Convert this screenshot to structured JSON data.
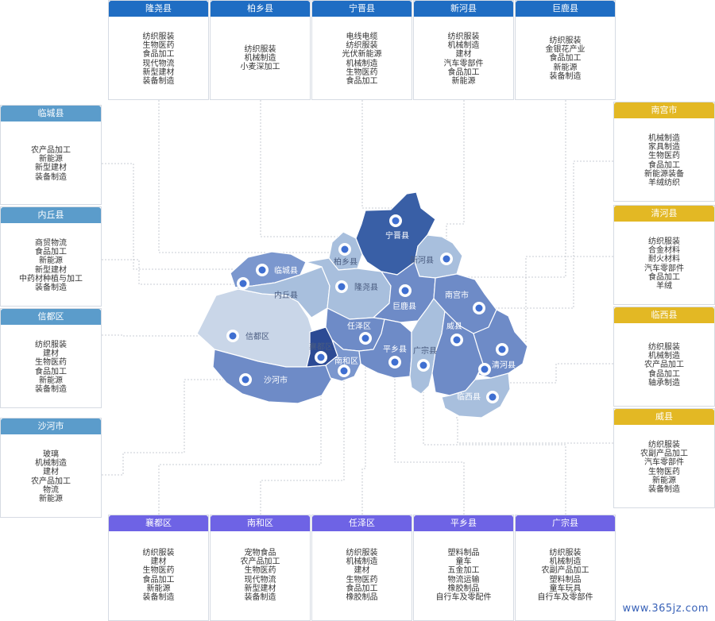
{
  "top_cards": [
    {
      "name": "隆尧县",
      "items": [
        "纺织服装",
        "生物医药",
        "食品加工",
        "现代物流",
        "新型建材",
        "装备制造"
      ]
    },
    {
      "name": "柏乡县",
      "items": [
        "纺织服装",
        "机械制造",
        "小麦深加工"
      ]
    },
    {
      "name": "宁晋县",
      "items": [
        "电线电缆",
        "纺织服装",
        "光伏新能源",
        "机械制造",
        "生物医药",
        "食品加工"
      ]
    },
    {
      "name": "新河县",
      "items": [
        "纺织服装",
        "机械制造",
        "建材",
        "汽车零部件",
        "食品加工",
        "新能源"
      ]
    },
    {
      "name": "巨鹿县",
      "items": [
        "纺织服装",
        "金银花产业",
        "食品加工",
        "新能源",
        "装备制造"
      ]
    }
  ],
  "left_cards": [
    {
      "name": "临城县",
      "items": [
        "农产品加工",
        "新能源",
        "新型建材",
        "装备制造"
      ]
    },
    {
      "name": "内丘县",
      "items": [
        "商贸物流",
        "食品加工",
        "新能源",
        "新型建材",
        "中药材种植与加工",
        "装备制造"
      ]
    },
    {
      "name": "信都区",
      "items": [
        "纺织服装",
        "建材",
        "生物医药",
        "食品加工",
        "新能源",
        "装备制造"
      ]
    },
    {
      "name": "沙河市",
      "items": [
        "玻璃",
        "机械制造",
        "建材",
        "农产品加工",
        "物流",
        "新能源"
      ]
    }
  ],
  "right_cards": [
    {
      "name": "南宫市",
      "items": [
        "机械制造",
        "家具制造",
        "生物医药",
        "食品加工",
        "新能源装备",
        "羊绒纺织"
      ]
    },
    {
      "name": "清河县",
      "items": [
        "纺织服装",
        "合金材料",
        "耐火材料",
        "汽车零部件",
        "食品加工",
        "羊绒"
      ]
    },
    {
      "name": "临西县",
      "items": [
        "纺织服装",
        "机械制造",
        "农产品加工",
        "食品加工",
        "轴承制造"
      ]
    },
    {
      "name": "威县",
      "items": [
        "纺织服装",
        "农副产品加工",
        "汽车零部件",
        "生物医药",
        "新能源",
        "装备制造"
      ]
    }
  ],
  "bottom_cards": [
    {
      "name": "襄都区",
      "items": [
        "纺织服装",
        "建材",
        "生物医药",
        "食品加工",
        "新能源",
        "装备制造"
      ]
    },
    {
      "name": "南和区",
      "items": [
        "宠物食品",
        "农产品加工",
        "生物医药",
        "现代物流",
        "新型建材",
        "装备制造"
      ]
    },
    {
      "name": "任泽区",
      "items": [
        "纺织服装",
        "机械制造",
        "建材",
        "生物医药",
        "食品加工",
        "橡胶制品"
      ]
    },
    {
      "name": "平乡县",
      "items": [
        "塑料制品",
        "童车",
        "五金加工",
        "物流运输",
        "橡胶制品",
        "自行车及零配件"
      ]
    },
    {
      "name": "广宗县",
      "items": [
        "纺织服装",
        "机械制造",
        "农副产品加工",
        "塑料制品",
        "童车玩具",
        "自行车及零部件"
      ]
    }
  ],
  "map_labels": {
    "ningjin": "宁晋县",
    "baixiang": "柏乡县",
    "xinhe": "新河县",
    "lincheng": "临城县",
    "longyao": "隆尧县",
    "neiqiu": "内丘县",
    "julu": "巨鹿县",
    "nangong": "南宫市",
    "xindu": "信都区",
    "renze": "任泽区",
    "xiangdu": "襄都区",
    "weixian": "威县",
    "pingxiang": "平乡县",
    "guangzong": "广宗县",
    "nanhe": "南和区",
    "qinghe": "清河县",
    "shahe": "沙河市",
    "linxi": "临西县"
  },
  "watermark": "www.365jz.com"
}
